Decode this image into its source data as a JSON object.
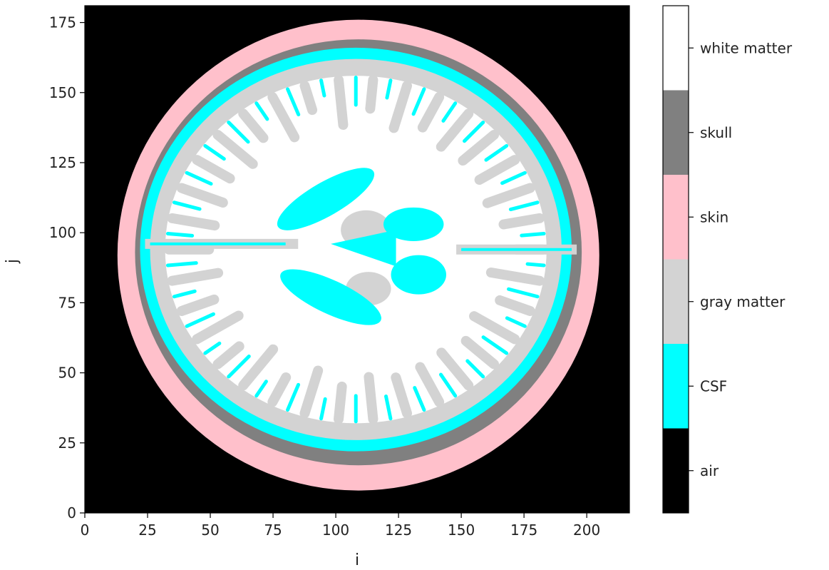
{
  "chart_data": {
    "type": "heatmap",
    "title": "",
    "xlabel": "i",
    "ylabel": "j",
    "xlim": [
      0,
      217
    ],
    "ylim": [
      0,
      181
    ],
    "xticks": [
      0,
      25,
      50,
      75,
      100,
      125,
      150,
      175,
      200
    ],
    "yticks": [
      0,
      25,
      50,
      75,
      100,
      125,
      150,
      175
    ],
    "colorbar": {
      "categories": [
        "air",
        "CSF",
        "gray matter",
        "skin",
        "skull",
        "white matter"
      ],
      "colors": [
        "#000000",
        "#00ffff",
        "#d3d3d3",
        "#ffc0cb",
        "#808080",
        "#ffffff"
      ]
    },
    "regions": {
      "skin_outer": {
        "center": [
          109,
          92
        ],
        "radius": [
          96,
          84
        ]
      },
      "skull_outer": {
        "center": [
          109,
          93
        ],
        "radius": [
          89,
          76
        ]
      },
      "csf_outer": {
        "center": [
          108,
          94
        ],
        "radius": [
          86,
          72
        ]
      },
      "brain": {
        "center": [
          108,
          94
        ],
        "radius": [
          82,
          68
        ]
      },
      "ventricle_left_front": {
        "center": [
          96,
          112
        ],
        "radius": [
          22,
          6
        ],
        "angle": -30
      },
      "ventricle_left_back": {
        "center": [
          98,
          77
        ],
        "radius": [
          22,
          6
        ],
        "angle": 25
      },
      "ventricle_right_front": {
        "center": [
          131,
          103
        ],
        "radius": [
          12,
          6
        ]
      },
      "ventricle_right_back": {
        "center": [
          133,
          85
        ],
        "radius": [
          11,
          7
        ]
      },
      "thalamus_front": {
        "center": [
          112,
          101
        ],
        "radius": [
          10,
          7
        ]
      },
      "thalamus_back": {
        "center": [
          113,
          80
        ],
        "radius": [
          9,
          6
        ]
      }
    }
  }
}
